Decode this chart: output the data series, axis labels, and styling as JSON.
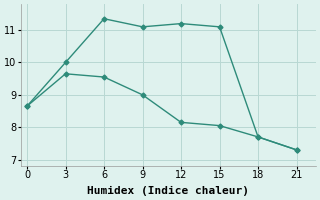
{
  "line1_x": [
    0,
    3,
    6,
    9,
    12,
    15,
    18,
    21
  ],
  "line1_y": [
    8.65,
    10.0,
    11.35,
    11.1,
    11.2,
    11.1,
    7.7,
    7.3
  ],
  "line2_x": [
    0,
    3,
    6,
    9,
    12,
    15,
    18,
    21
  ],
  "line2_y": [
    8.65,
    9.65,
    9.55,
    9.0,
    8.15,
    8.05,
    7.7,
    7.3
  ],
  "color": "#2e8b7a",
  "bg_color": "#dff2ee",
  "xlabel": "Humidex (Indice chaleur)",
  "xlim": [
    -0.5,
    22.5
  ],
  "ylim": [
    6.8,
    11.8
  ],
  "xticks": [
    0,
    3,
    6,
    9,
    12,
    15,
    18,
    21
  ],
  "yticks": [
    7,
    8,
    9,
    10,
    11
  ],
  "grid_color": "#b8d8d3",
  "marker": "D",
  "markersize": 2.5,
  "linewidth": 1.0,
  "xlabel_fontsize": 8,
  "tick_fontsize": 7
}
